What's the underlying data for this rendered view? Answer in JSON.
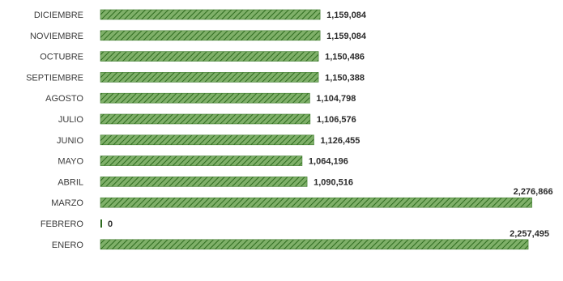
{
  "chart_data": {
    "type": "bar",
    "orientation": "horizontal",
    "categories": [
      "DICIEMBRE",
      "NOVIEMBRE",
      "OCTUBRE",
      "SEPTIEMBRE",
      "AGOSTO",
      "JULIO",
      "JUNIO",
      "MAYO",
      "ABRIL",
      "MARZO",
      "FEBRERO",
      "ENERO"
    ],
    "values": [
      1159084,
      1159084,
      1150486,
      1150388,
      1104798,
      1106576,
      1126455,
      1064196,
      1090516,
      2276866,
      0,
      2257495
    ],
    "value_labels": [
      "1,159,084",
      "1,159,084",
      "1,150,486",
      "1,150,388",
      "1,104,798",
      "1,106,576",
      "1,126,455",
      "1,064,196",
      "1,090,516",
      "2,276,866",
      "0",
      "2,257,495"
    ],
    "title": "",
    "xlabel": "",
    "ylabel": "",
    "xlim": [
      0,
      2300000
    ],
    "grid": false,
    "legend": "none",
    "colors": {
      "bar_fill": "#7fb069",
      "bar_hatch": "#2e6b1f",
      "bar_stroke": "#3d7a2b"
    }
  }
}
